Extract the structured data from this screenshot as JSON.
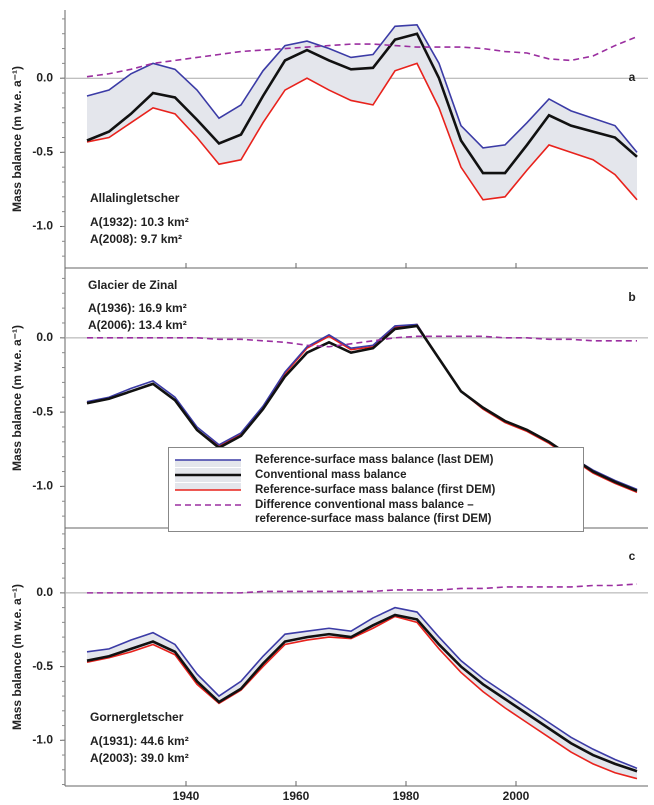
{
  "chart_data": [
    {
      "type": "line",
      "panel_label": "a",
      "glacier": "Allalingletscher",
      "area_lines": [
        "A(1932):  10.3 km²",
        "A(2008):  9.7 km²"
      ],
      "y_label": "Mass balance (m w.e. a⁻¹)",
      "ylim": [
        -1.28,
        0.46
      ],
      "yticks": [
        {
          "value": 0,
          "label": "0.0"
        },
        -0.5,
        {
          "value": -1,
          "label": "-1.0"
        }
      ],
      "xlim": [
        1918,
        2024
      ],
      "x": [
        1922,
        1926,
        1930,
        1934,
        1938,
        1942,
        1946,
        1950,
        1954,
        1958,
        1962,
        1966,
        1970,
        1974,
        1978,
        1982,
        1986,
        1990,
        1994,
        1998,
        2002,
        2006,
        2010,
        2014,
        2018,
        2022
      ],
      "series": [
        {
          "color": "#3b3ba6",
          "values": [
            -0.12,
            -0.08,
            0.03,
            0.1,
            0.06,
            -0.08,
            -0.27,
            -0.18,
            0.05,
            0.22,
            0.25,
            0.2,
            0.14,
            0.16,
            0.35,
            0.36,
            0.1,
            -0.32,
            -0.47,
            -0.45,
            -0.3,
            -0.14,
            -0.22,
            -0.27,
            -0.32,
            -0.5
          ]
        },
        {
          "color": "#111111",
          "values": [
            -0.42,
            -0.36,
            -0.24,
            -0.1,
            -0.13,
            -0.28,
            -0.44,
            -0.38,
            -0.12,
            0.12,
            0.19,
            0.12,
            0.06,
            0.07,
            0.26,
            0.3,
            0.0,
            -0.42,
            -0.64,
            -0.64,
            -0.45,
            -0.25,
            -0.32,
            -0.36,
            -0.4,
            -0.53
          ]
        },
        {
          "color": "#e8221c",
          "values": [
            -0.43,
            -0.4,
            -0.3,
            -0.2,
            -0.24,
            -0.4,
            -0.58,
            -0.55,
            -0.3,
            -0.08,
            0.0,
            -0.08,
            -0.15,
            -0.18,
            0.05,
            0.1,
            -0.2,
            -0.6,
            -0.82,
            -0.8,
            -0.62,
            -0.45,
            -0.5,
            -0.55,
            -0.65,
            -0.82
          ]
        },
        {
          "color": "#9b2fa0",
          "dashed": true,
          "values": [
            0.01,
            0.03,
            0.06,
            0.1,
            0.12,
            0.14,
            0.16,
            0.18,
            0.19,
            0.2,
            0.21,
            0.22,
            0.23,
            0.23,
            0.22,
            0.21,
            0.21,
            0.21,
            0.2,
            0.18,
            0.17,
            0.13,
            0.12,
            0.15,
            0.22,
            0.28
          ]
        }
      ]
    },
    {
      "type": "line",
      "panel_label": "b",
      "glacier": "Glacier de Zinal",
      "area_lines": [
        "A(1936):  16.9 km²",
        "A(2006):  13.4 km²"
      ],
      "y_label": "Mass balance (m w.e. a⁻¹)",
      "ylim": [
        -1.28,
        0.47
      ],
      "yticks": [
        {
          "value": 0,
          "label": "0.0"
        },
        -0.5,
        {
          "value": -1,
          "label": "-1.0"
        }
      ],
      "xlim": [
        1918,
        2024
      ],
      "x": [
        1922,
        1926,
        1930,
        1934,
        1938,
        1942,
        1946,
        1950,
        1954,
        1958,
        1962,
        1966,
        1970,
        1974,
        1978,
        1982,
        1986,
        1990,
        1994,
        1998,
        2002,
        2006,
        2010,
        2014,
        2018,
        2022
      ],
      "series": [
        {
          "name": "Reference-surface mass balance (last DEM)",
          "color": "#3b3ba6",
          "values": [
            -0.43,
            -0.4,
            -0.34,
            -0.29,
            -0.4,
            -0.6,
            -0.72,
            -0.64,
            -0.46,
            -0.23,
            -0.06,
            0.02,
            -0.07,
            -0.05,
            0.08,
            0.09,
            -0.14,
            -0.36,
            -0.47,
            -0.56,
            -0.62,
            -0.7,
            -0.8,
            -0.89,
            -0.96,
            -1.02
          ]
        },
        {
          "name": "Conventional mass balance",
          "color": "#111111",
          "values": [
            -0.44,
            -0.41,
            -0.36,
            -0.31,
            -0.42,
            -0.62,
            -0.74,
            -0.66,
            -0.48,
            -0.26,
            -0.1,
            -0.03,
            -0.1,
            -0.07,
            0.06,
            0.08,
            -0.14,
            -0.36,
            -0.47,
            -0.56,
            -0.62,
            -0.7,
            -0.8,
            -0.9,
            -0.97,
            -1.03
          ]
        },
        {
          "name": "Reference-surface mass balance (first DEM)",
          "color": "#e8221c",
          "values": [
            -0.44,
            -0.41,
            -0.36,
            -0.31,
            -0.42,
            -0.62,
            -0.73,
            -0.65,
            -0.47,
            -0.24,
            -0.07,
            0.01,
            -0.08,
            -0.06,
            0.07,
            0.09,
            -0.14,
            -0.36,
            -0.48,
            -0.57,
            -0.63,
            -0.71,
            -0.81,
            -0.91,
            -0.98,
            -1.04
          ]
        },
        {
          "name": "Difference conventional mass balance –\nreference-surface mass balance (first DEM)",
          "color": "#9b2fa0",
          "dashed": true,
          "values": [
            0,
            0,
            0,
            0,
            0,
            0,
            -0.01,
            -0.01,
            -0.02,
            -0.03,
            -0.05,
            -0.06,
            -0.04,
            -0.02,
            0,
            0.01,
            0.01,
            0.01,
            0.01,
            0,
            0,
            -0.01,
            -0.01,
            -0.02,
            -0.02,
            -0.02
          ]
        }
      ]
    },
    {
      "type": "line",
      "panel_label": "c",
      "glacier": "Gornergletscher",
      "area_lines": [
        "A(1931):  44.6 km²",
        "A(2003):  39.0 km²"
      ],
      "y_label": "Mass balance (m w.e. a⁻¹)",
      "ylim": [
        -1.31,
        0.44
      ],
      "yticks": [
        {
          "value": 0,
          "label": "0.0"
        },
        -0.5,
        {
          "value": -1,
          "label": "-1.0"
        }
      ],
      "xlim": [
        1918,
        2024
      ],
      "xticks": [
        1940,
        1960,
        1980,
        2000
      ],
      "x": [
        1922,
        1926,
        1930,
        1934,
        1938,
        1942,
        1946,
        1950,
        1954,
        1958,
        1962,
        1966,
        1970,
        1974,
        1978,
        1982,
        1986,
        1990,
        1994,
        1998,
        2002,
        2006,
        2010,
        2014,
        2018,
        2022
      ],
      "series": [
        {
          "color": "#3b3ba6",
          "values": [
            -0.4,
            -0.38,
            -0.32,
            -0.27,
            -0.35,
            -0.55,
            -0.7,
            -0.6,
            -0.43,
            -0.28,
            -0.26,
            -0.24,
            -0.26,
            -0.17,
            -0.1,
            -0.13,
            -0.3,
            -0.46,
            -0.58,
            -0.68,
            -0.78,
            -0.88,
            -0.98,
            -1.06,
            -1.13,
            -1.19
          ]
        },
        {
          "color": "#111111",
          "values": [
            -0.46,
            -0.43,
            -0.38,
            -0.33,
            -0.4,
            -0.6,
            -0.74,
            -0.65,
            -0.48,
            -0.33,
            -0.3,
            -0.28,
            -0.3,
            -0.22,
            -0.15,
            -0.18,
            -0.35,
            -0.5,
            -0.62,
            -0.72,
            -0.82,
            -0.92,
            -1.02,
            -1.1,
            -1.16,
            -1.21
          ]
        },
        {
          "color": "#e8221c",
          "values": [
            -0.47,
            -0.44,
            -0.4,
            -0.35,
            -0.42,
            -0.62,
            -0.75,
            -0.66,
            -0.5,
            -0.35,
            -0.32,
            -0.3,
            -0.31,
            -0.24,
            -0.16,
            -0.2,
            -0.38,
            -0.54,
            -0.67,
            -0.78,
            -0.88,
            -0.98,
            -1.08,
            -1.16,
            -1.22,
            -1.26
          ]
        },
        {
          "color": "#9b2fa0",
          "dashed": true,
          "values": [
            0,
            0,
            0,
            0,
            0,
            0,
            0,
            0,
            0.01,
            0.01,
            0.01,
            0.01,
            0.01,
            0.01,
            0.02,
            0.02,
            0.02,
            0.03,
            0.03,
            0.04,
            0.04,
            0.04,
            0.04,
            0.05,
            0.05,
            0.06
          ]
        }
      ]
    }
  ]
}
